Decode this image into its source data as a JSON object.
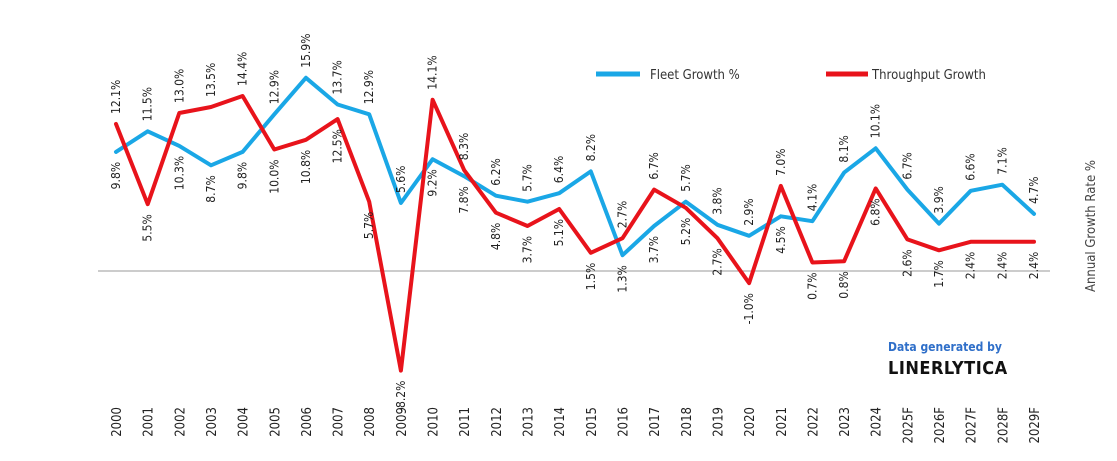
{
  "chart_data": {
    "type": "line",
    "categories": [
      "2000",
      "2001",
      "2002",
      "2003",
      "2004",
      "2005",
      "2006",
      "2007",
      "2008",
      "2009",
      "2010",
      "2011",
      "2012",
      "2013",
      "2014",
      "2015",
      "2016",
      "2017",
      "2018",
      "2019",
      "2020",
      "2021",
      "2022",
      "2023",
      "2024",
      "2025F",
      "2026F",
      "2027F",
      "2028F",
      "2029F"
    ],
    "series": [
      {
        "name": "Fleet Growth %",
        "color": "#1aa7e6",
        "values": [
          9.8,
          11.5,
          10.3,
          8.7,
          9.8,
          12.9,
          15.9,
          13.7,
          12.9,
          5.6,
          9.2,
          7.8,
          6.2,
          5.7,
          6.4,
          8.2,
          1.3,
          3.7,
          5.7,
          3.8,
          2.9,
          4.5,
          4.1,
          8.1,
          10.1,
          6.7,
          3.9,
          6.6,
          7.1,
          4.7
        ],
        "labels": [
          "9.8%",
          "11.5%",
          "10.3%",
          "8.7%",
          "9.8%",
          "12.9%",
          "15.9%",
          "13.7%",
          "12.9%",
          "5.6%",
          "9.2%",
          "7.8%",
          "6.2%",
          "5.7%",
          "6.4%",
          "8.2%",
          "1.3%",
          "3.7%",
          "5.7%",
          "3.8%",
          "2.9%",
          "4.5%",
          "4.1%",
          "8.1%",
          "10.1%",
          "6.7%",
          "3.9%",
          "6.6%",
          "7.1%",
          "4.7%"
        ]
      },
      {
        "name": "Throughput Growth",
        "color": "#e8131b",
        "values": [
          12.1,
          5.5,
          13.0,
          13.5,
          14.4,
          10.0,
          10.8,
          12.5,
          5.7,
          -8.2,
          14.1,
          8.3,
          4.8,
          3.7,
          5.1,
          1.5,
          2.7,
          6.7,
          5.2,
          2.7,
          -1.0,
          7.0,
          0.7,
          0.8,
          6.8,
          2.6,
          1.7,
          2.4,
          2.4,
          2.4
        ],
        "labels": [
          "12.1%",
          "5.5%",
          "13.0%",
          "13.5%",
          "14.4%",
          "10.0%",
          "10.8%",
          "12.5%",
          "5.7%",
          "-8.2%",
          "14.1%",
          "8.3%",
          "4.8%",
          "3.7%",
          "5.1%",
          "1.5%",
          "2.7%",
          "6.7%",
          "5.2%",
          "2.7%",
          "-1.0%",
          "7.0%",
          "0.7%",
          "0.8%",
          "6.8%",
          "2.6%",
          "1.7%",
          "2.4%",
          "2.4%",
          "2.4%"
        ]
      }
    ],
    "ylabel": "Annual Growth Rate %",
    "ylim": [
      -9,
      17
    ],
    "grid": false,
    "legend": "top-right"
  },
  "branding": {
    "line1": "Data generated by",
    "line2": "LINERLYTICA"
  }
}
